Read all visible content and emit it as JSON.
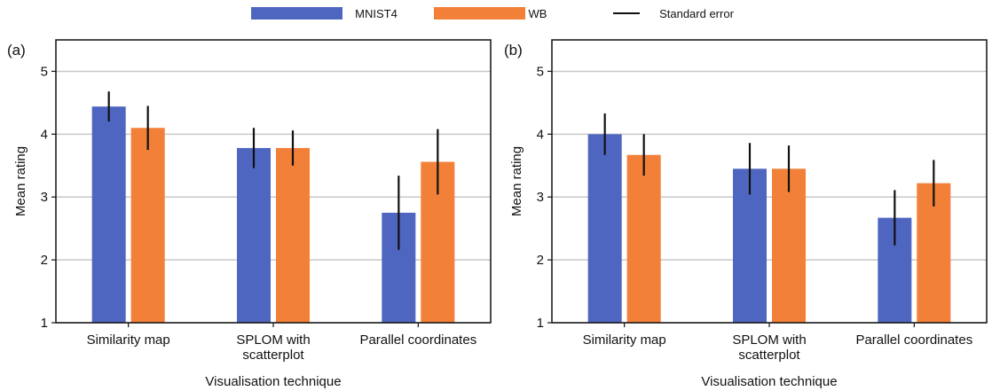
{
  "colors": {
    "mnist": "#4f66c0",
    "wb": "#f28039",
    "error_bar": "#111111",
    "grid": "#c8c8c8"
  },
  "legend": [
    {
      "label": "MNIST4",
      "kind": "bar",
      "color": "#4f66c0"
    },
    {
      "label": "WB",
      "kind": "bar",
      "color": "#f28039"
    },
    {
      "label": "Standard error",
      "kind": "line",
      "color": "#111111"
    }
  ],
  "chart_data": [
    {
      "panel_label": "(a)",
      "type": "bar",
      "categories": [
        [
          "Similarity map"
        ],
        [
          "SPLOM with",
          "scatterplot"
        ],
        [
          "Parallel coordinates"
        ]
      ],
      "series": [
        {
          "name": "MNIST4",
          "values": [
            4.44,
            3.78,
            2.75
          ],
          "errors": [
            0.24,
            0.32,
            0.59
          ]
        },
        {
          "name": "WB",
          "values": [
            4.1,
            3.78,
            3.56
          ],
          "errors": [
            0.35,
            0.28,
            0.52
          ]
        }
      ],
      "xlabel": "Visualisation technique",
      "ylabel": "Mean rating",
      "ylim": [
        1,
        5.5
      ],
      "yticks": [
        1,
        2,
        3,
        4,
        5
      ],
      "grid": true
    },
    {
      "panel_label": "(b)",
      "type": "bar",
      "categories": [
        [
          "Similarity map"
        ],
        [
          "SPLOM with",
          "scatterplot"
        ],
        [
          "Parallel coordinates"
        ]
      ],
      "series": [
        {
          "name": "MNIST4",
          "values": [
            4.0,
            3.45,
            2.67
          ],
          "errors": [
            0.33,
            0.41,
            0.44
          ]
        },
        {
          "name": "WB",
          "values": [
            3.67,
            3.45,
            3.22
          ],
          "errors": [
            0.33,
            0.37,
            0.37
          ]
        }
      ],
      "xlabel": "Visualisation technique",
      "ylabel": "Mean rating",
      "ylim": [
        1,
        5.5
      ],
      "yticks": [
        1,
        2,
        3,
        4,
        5
      ],
      "grid": true
    }
  ]
}
